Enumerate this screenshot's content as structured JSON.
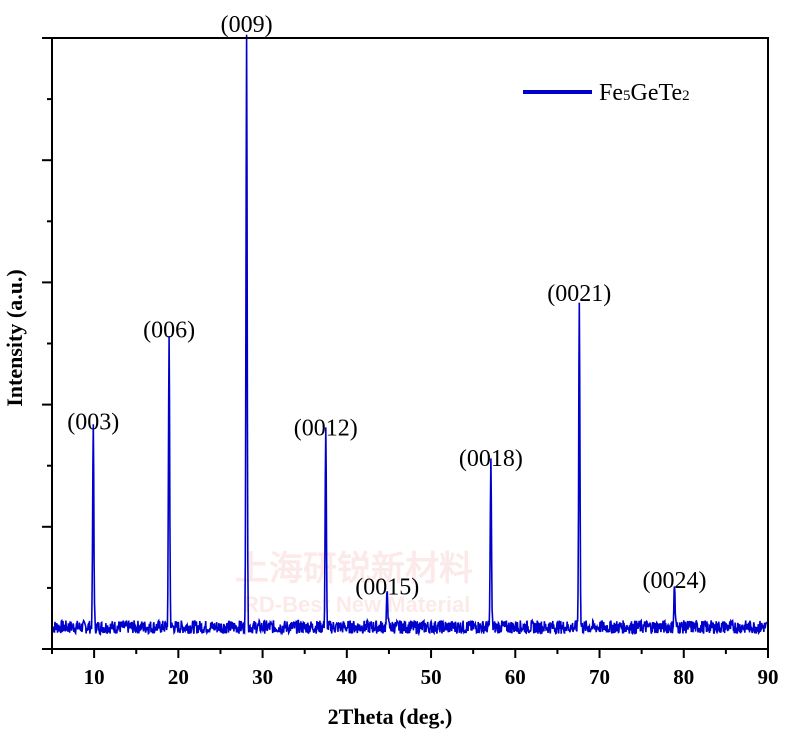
{
  "chart_data": {
    "type": "line",
    "xlabel": "2Theta (deg.)",
    "ylabel": "Intensity (a.u.)",
    "xlim": [
      5,
      90
    ],
    "ylim": [
      0,
      1
    ],
    "x_ticks": [
      10,
      20,
      30,
      40,
      50,
      60,
      70,
      80,
      90
    ],
    "y_tick_values_unlabeled": true,
    "grid": false,
    "legend_position": "top-right",
    "series": [
      {
        "name_main": "Fe",
        "name_sub1": "5",
        "name_mid": "GeTe",
        "name_sub2": "2",
        "color": "#0000cc",
        "peaks": [
          {
            "x": 9.9,
            "y": 0.33,
            "label": "(003)"
          },
          {
            "x": 18.9,
            "y": 0.48,
            "label": "(006)"
          },
          {
            "x": 28.1,
            "y": 0.98,
            "label": "(009)"
          },
          {
            "x": 37.5,
            "y": 0.32,
            "label": "(0012)"
          },
          {
            "x": 44.8,
            "y": 0.06,
            "label": "(0015)"
          },
          {
            "x": 57.1,
            "y": 0.27,
            "label": "(0018)"
          },
          {
            "x": 67.6,
            "y": 0.54,
            "label": "(0021)"
          },
          {
            "x": 78.9,
            "y": 0.07,
            "label": "(0024)"
          }
        ],
        "baseline": 0.025
      }
    ]
  },
  "watermark": {
    "line1": "上海研锐新材料",
    "line2": "RD-Best New Material"
  }
}
